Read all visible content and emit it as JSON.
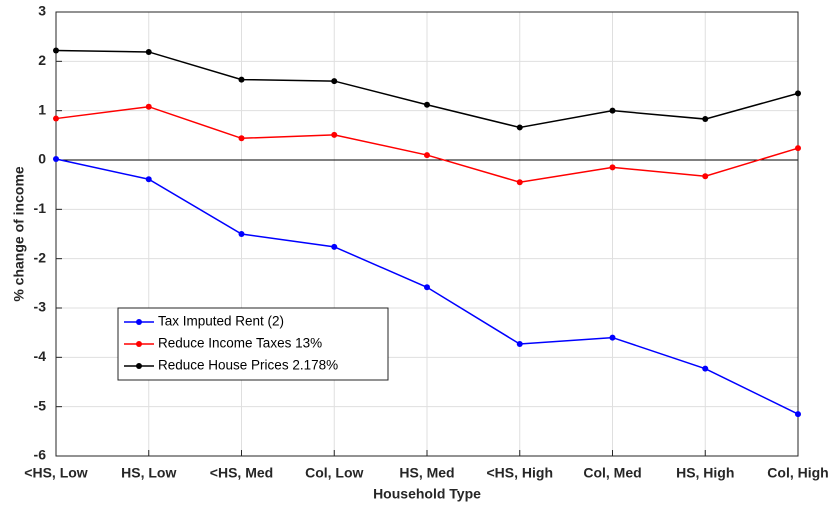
{
  "chart_data": {
    "type": "line",
    "xlabel": "Household Type",
    "ylabel": "% change of income",
    "categories": [
      "<HS, Low",
      "HS, Low",
      "<HS, Med",
      "Col, Low",
      "HS, Med",
      "<HS, High",
      "Col, Med",
      "HS, High",
      "Col, High"
    ],
    "series": [
      {
        "name": "Tax Imputed Rent (2)",
        "color": "#0000ff",
        "values": [
          0.02,
          -0.39,
          -1.5,
          -1.76,
          -2.58,
          -3.73,
          -3.6,
          -4.23,
          -5.15
        ]
      },
      {
        "name": "Reduce Income Taxes 13%",
        "color": "#ff0000",
        "values": [
          0.84,
          1.08,
          0.44,
          0.51,
          0.1,
          -0.45,
          -0.15,
          -0.33,
          0.24
        ]
      },
      {
        "name": "Reduce House Prices 2.178%",
        "color": "#000000",
        "values": [
          2.22,
          2.19,
          1.63,
          1.6,
          1.12,
          0.66,
          1.0,
          0.83,
          1.35
        ]
      }
    ],
    "ylim": [
      -6,
      3
    ],
    "yticks": [
      -6,
      -5,
      -4,
      -3,
      -2,
      -1,
      0,
      1,
      2,
      3
    ],
    "grid": true,
    "zero_line": true,
    "legend": "southwest"
  }
}
